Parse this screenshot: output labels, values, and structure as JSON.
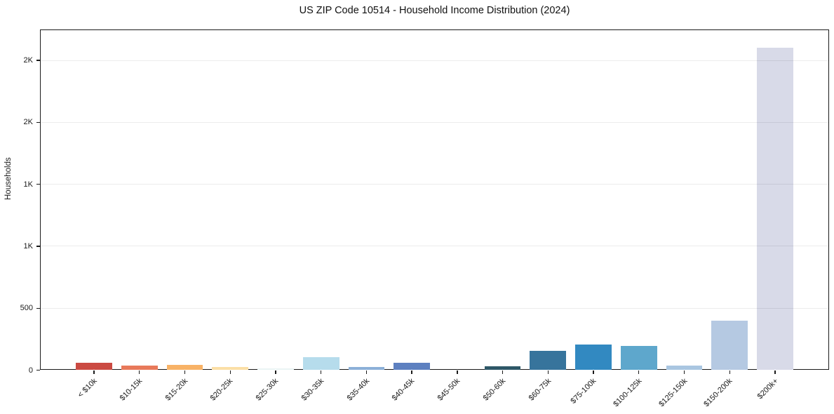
{
  "chart_data": {
    "type": "bar",
    "title": "US ZIP Code 10514 - Household Income Distribution (2024)",
    "ylabel": "Households",
    "xlabel": "",
    "legend": "none",
    "grid": "horizontal-light",
    "tick_label_rotation": 45,
    "ylim": [
      0,
      2750
    ],
    "yticks": [
      {
        "value": 0,
        "label": "0"
      },
      {
        "value": 500,
        "label": "500"
      },
      {
        "value": 1000,
        "label": "1K"
      },
      {
        "value": 1500,
        "label": "1K"
      },
      {
        "value": 2000,
        "label": "2K"
      },
      {
        "value": 2500,
        "label": "2K"
      }
    ],
    "categories": [
      "< $10k",
      "$10-15k",
      "$15-20k",
      "$20-25k",
      "$25-30k",
      "$30-35k",
      "$35-40k",
      "$40-45k",
      "$45-50k",
      "$50-60k",
      "$60-75k",
      "$75-100k",
      "$100-125k",
      "$125-150k",
      "$150-200k",
      "$200k+"
    ],
    "values": [
      62,
      38,
      45,
      25,
      16,
      102,
      28,
      58,
      0,
      30,
      158,
      206,
      196,
      36,
      402,
      2600
    ],
    "bar_colors": [
      "#cb4a42",
      "#e8795a",
      "#f8b266",
      "#fbdfa6",
      "#eaf4f4",
      "#b6dcec",
      "#8cb0d8",
      "#5d80c0",
      "#8cb0d8",
      "#2e5767",
      "#37749c",
      "#3289c1",
      "#5ea7cc",
      "#a9c6e1",
      "#b5c9e2",
      "#d8dae8"
    ],
    "axis_color": "#1a1a1a",
    "background_color": "#ffffff"
  }
}
